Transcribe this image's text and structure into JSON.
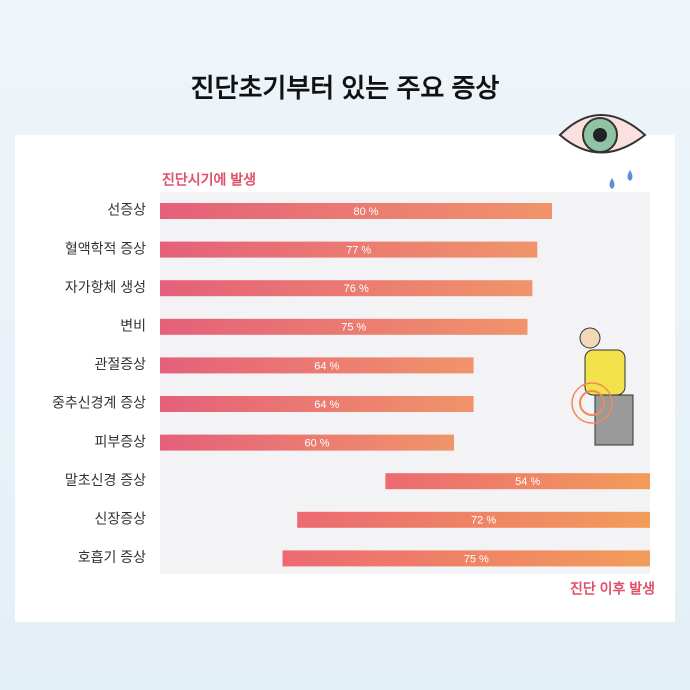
{
  "chart_data": {
    "type": "bar",
    "orientation": "horizontal",
    "title": "진단초기부터 있는 주요 증상",
    "categories": [
      "선증상",
      "혈액학적 증상",
      "자가항체 생성",
      "변비",
      "관절증상",
      "중추신경계 증상",
      "피부증상",
      "말초신경 증상",
      "신장증상",
      "호흡기 증상"
    ],
    "series": [
      {
        "name": "진단시기에 발생",
        "color": "#e5607a",
        "values": [
          80,
          77,
          76,
          75,
          64,
          64,
          60,
          null,
          null,
          null
        ],
        "value_labels": [
          "80 %",
          "77 %",
          "76 %",
          "75 %",
          "64 %",
          "64 %",
          "60 %",
          null,
          null,
          null
        ]
      },
      {
        "name": "진단 이후 발생",
        "color": "#ec6a72",
        "values": [
          null,
          null,
          null,
          null,
          null,
          null,
          null,
          54,
          72,
          75
        ],
        "value_labels": [
          null,
          null,
          null,
          null,
          null,
          null,
          null,
          "54 %",
          "72 %",
          "75 %"
        ]
      }
    ],
    "xlim": [
      0,
      100
    ]
  }
}
